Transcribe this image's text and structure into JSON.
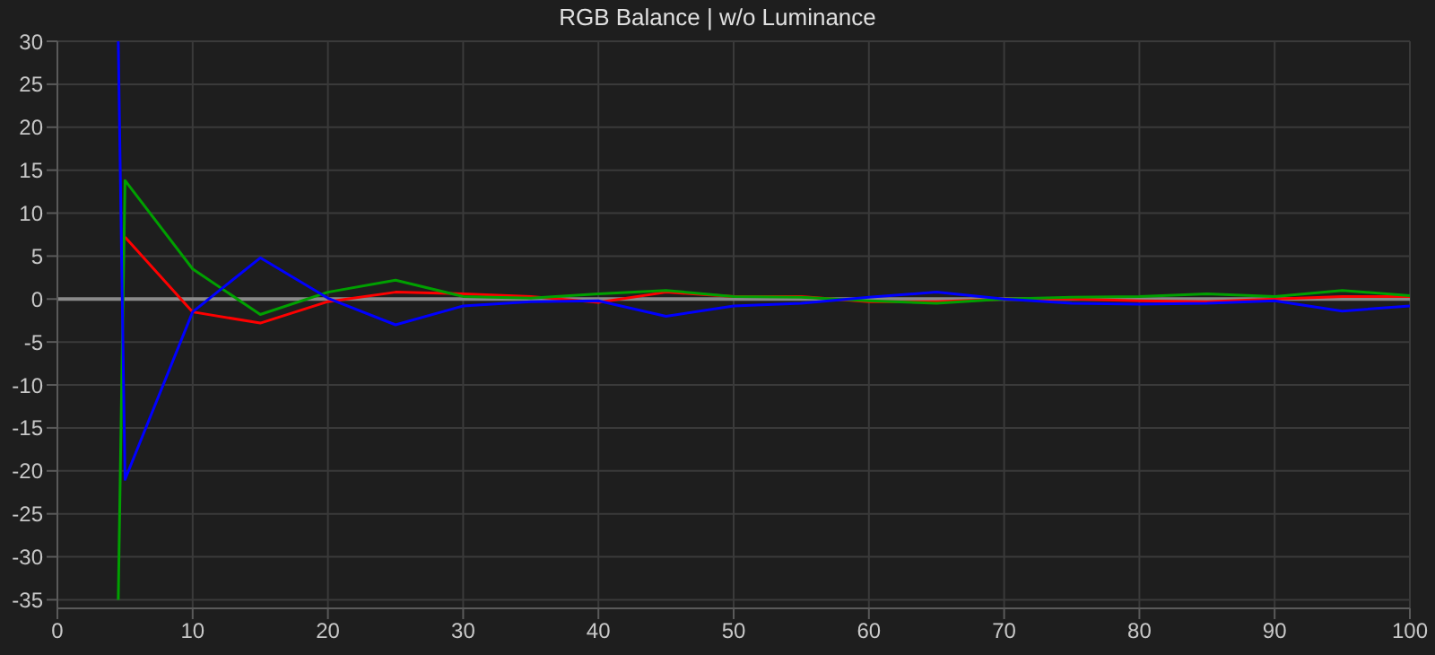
{
  "chart_data": {
    "type": "line",
    "title": "RGB Balance | w/o Luminance",
    "x": [
      4.5,
      5,
      10,
      15,
      20,
      25,
      30,
      35,
      40,
      45,
      50,
      55,
      60,
      65,
      70,
      75,
      80,
      85,
      90,
      95,
      100
    ],
    "series": [
      {
        "color": "#ff0000",
        "values": [
          null,
          7.2,
          -1.5,
          -2.8,
          -0.3,
          0.8,
          0.6,
          0.3,
          -0.4,
          0.8,
          0.3,
          0.3,
          -0.3,
          -0.3,
          0,
          0,
          -0.2,
          -0.3,
          0,
          0.3,
          0.3
        ]
      },
      {
        "color": "#00a000",
        "values": [
          -35,
          13.8,
          3.5,
          -1.8,
          0.8,
          2.2,
          0.3,
          0.1,
          0.6,
          1.0,
          0.3,
          0.2,
          -0.2,
          -0.5,
          0,
          0.2,
          0.3,
          0.6,
          0.3,
          1.0,
          0.4
        ]
      },
      {
        "color": "#0000ff",
        "values": [
          30,
          -21,
          -1.5,
          4.8,
          0.1,
          -3.0,
          -0.8,
          -0.3,
          -0.2,
          -2.0,
          -0.8,
          -0.5,
          0.2,
          0.8,
          0,
          -0.5,
          -0.6,
          -0.5,
          -0.2,
          -1.4,
          -0.8
        ]
      }
    ],
    "xlim": [
      0,
      100
    ],
    "xticks": [
      0,
      10,
      20,
      30,
      40,
      50,
      60,
      70,
      80,
      90,
      100
    ],
    "ylim": [
      -36,
      30
    ],
    "yticks": [
      -35,
      -30,
      -25,
      -20,
      -15,
      -10,
      -5,
      0,
      5,
      10,
      15,
      20,
      25,
      30
    ],
    "grid": true,
    "legend": false,
    "marker": "none",
    "line_style": "solid",
    "ref_lines": [
      {
        "axis": "y",
        "value": 0,
        "color": "#8a8a8a"
      }
    ]
  }
}
